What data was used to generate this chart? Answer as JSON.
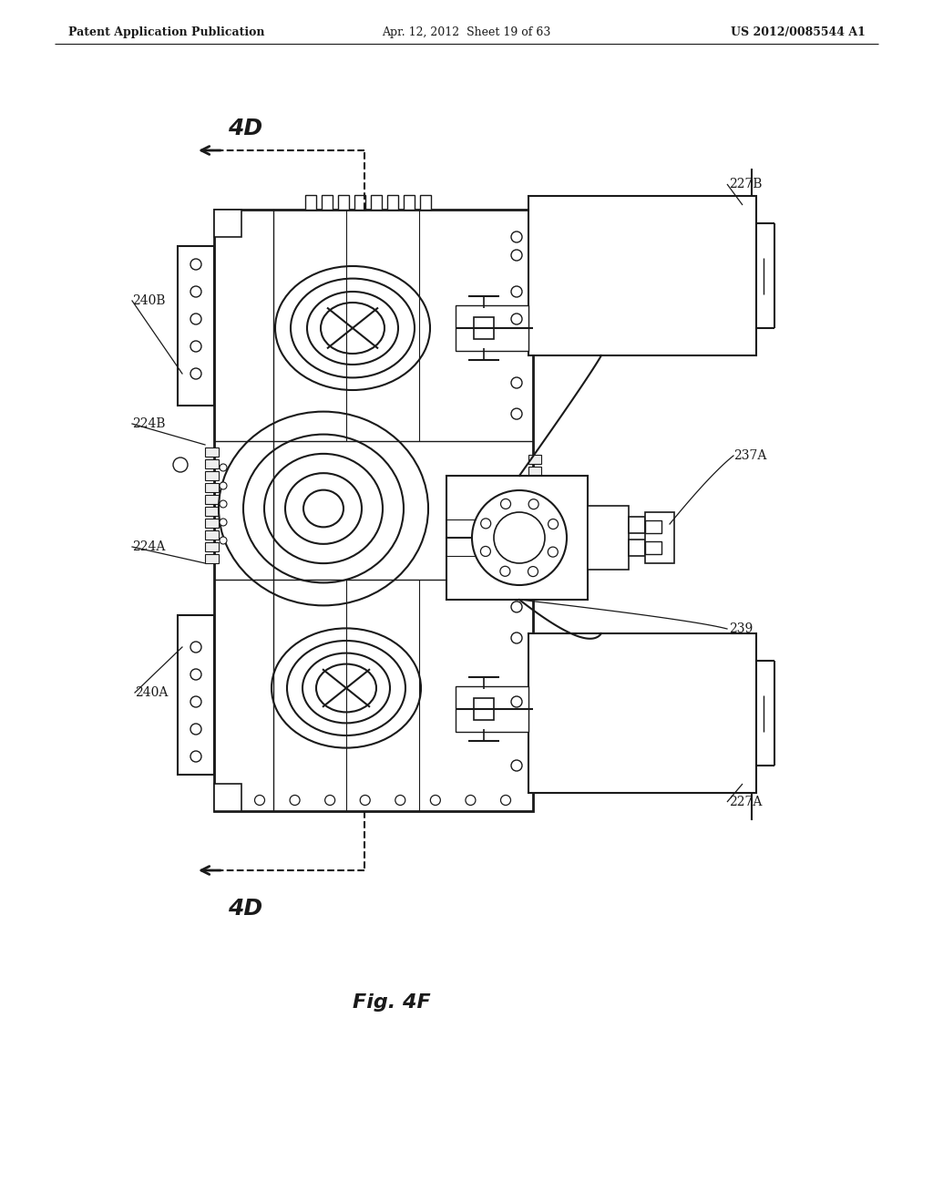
{
  "title_left": "Patent Application Publication",
  "title_center": "Apr. 12, 2012  Sheet 19 of 63",
  "title_right": "US 2012/0085544 A1",
  "fig_label": "Fig. 4F",
  "bg_color": "#ffffff",
  "line_color": "#1a1a1a",
  "lw": 1.5
}
